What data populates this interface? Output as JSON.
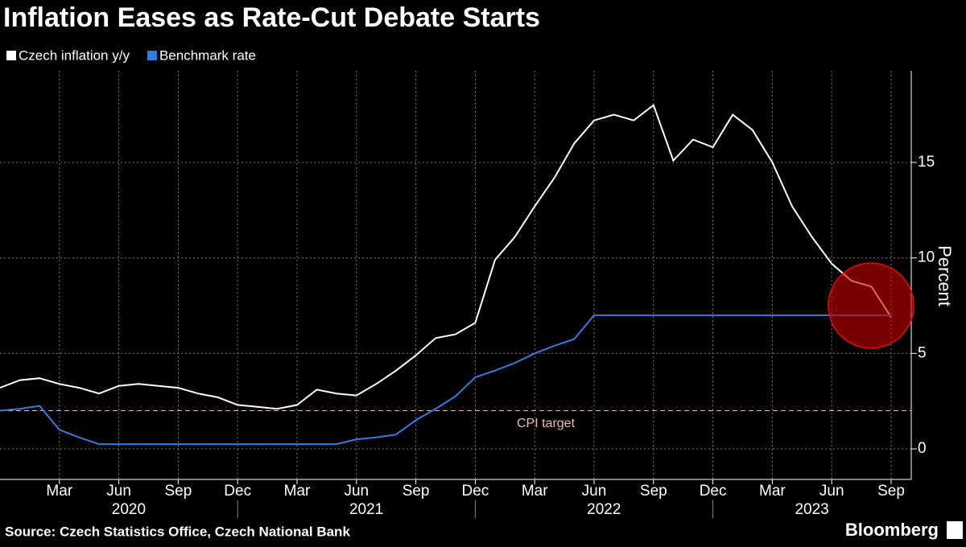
{
  "chart_data": {
    "type": "line",
    "title": "Inflation Eases as Rate-Cut Debate Starts",
    "source": "Source: Czech Statistics Office, Czech National Bank",
    "brand": "Bloomberg",
    "y_label": "Percent",
    "x": [
      "2019-12",
      "2020-01",
      "2020-02",
      "2020-03",
      "2020-04",
      "2020-05",
      "2020-06",
      "2020-07",
      "2020-08",
      "2020-09",
      "2020-10",
      "2020-11",
      "2020-12",
      "2021-01",
      "2021-02",
      "2021-03",
      "2021-04",
      "2021-05",
      "2021-06",
      "2021-07",
      "2021-08",
      "2021-09",
      "2021-10",
      "2021-11",
      "2021-12",
      "2022-01",
      "2022-02",
      "2022-03",
      "2022-04",
      "2022-05",
      "2022-06",
      "2022-07",
      "2022-08",
      "2022-09",
      "2022-10",
      "2022-11",
      "2022-12",
      "2023-01",
      "2023-02",
      "2023-03",
      "2023-04",
      "2023-05",
      "2023-06",
      "2023-07",
      "2023-08",
      "2023-09"
    ],
    "series": [
      {
        "name": "Czech inflation y/y",
        "color": "#ffffff",
        "values": [
          3.2,
          3.6,
          3.7,
          3.4,
          3.2,
          2.9,
          3.3,
          3.4,
          3.3,
          3.2,
          2.9,
          2.7,
          2.3,
          2.2,
          2.1,
          2.3,
          3.1,
          2.9,
          2.8,
          3.4,
          4.1,
          4.9,
          5.8,
          6.0,
          6.6,
          9.9,
          11.1,
          12.7,
          14.2,
          16.0,
          17.2,
          17.5,
          17.2,
          18.0,
          15.1,
          16.2,
          15.8,
          17.5,
          16.7,
          15.0,
          12.7,
          11.1,
          9.7,
          8.8,
          8.5,
          6.9
        ]
      },
      {
        "name": "Benchmark rate",
        "color": "#2f7ee0",
        "values": [
          2.0,
          2.1,
          2.25,
          1.0,
          0.6,
          0.25,
          0.25,
          0.25,
          0.25,
          0.25,
          0.25,
          0.25,
          0.25,
          0.25,
          0.25,
          0.25,
          0.25,
          0.25,
          0.5,
          0.6,
          0.75,
          1.5,
          2.1,
          2.75,
          3.75,
          4.1,
          4.5,
          5.0,
          5.4,
          5.75,
          7.0,
          7.0,
          7.0,
          7.0,
          7.0,
          7.0,
          7.0,
          7.0,
          7.0,
          7.0,
          7.0,
          7.0,
          7.0,
          7.0,
          7.0,
          7.0
        ]
      }
    ],
    "target_line": {
      "value": 2,
      "label": "CPI target",
      "color": "#f4b6b6"
    },
    "xticks": [
      {
        "value": "2020-03",
        "label": "Mar"
      },
      {
        "value": "2020-06",
        "label": "Jun"
      },
      {
        "value": "2020-09",
        "label": "Sep"
      },
      {
        "value": "2020-12",
        "label": "Dec"
      },
      {
        "value": "2021-03",
        "label": "Mar"
      },
      {
        "value": "2021-06",
        "label": "Jun"
      },
      {
        "value": "2021-09",
        "label": "Sep"
      },
      {
        "value": "2021-12",
        "label": "Dec"
      },
      {
        "value": "2022-03",
        "label": "Mar"
      },
      {
        "value": "2022-06",
        "label": "Jun"
      },
      {
        "value": "2022-09",
        "label": "Sep"
      },
      {
        "value": "2022-12",
        "label": "Dec"
      },
      {
        "value": "2023-03",
        "label": "Mar"
      },
      {
        "value": "2023-06",
        "label": "Jun"
      },
      {
        "value": "2023-09",
        "label": "Sep"
      }
    ],
    "years": [
      "2020",
      "2021",
      "2022",
      "2023"
    ],
    "ylim": [
      -1.6,
      19.8
    ],
    "yticks": [
      0,
      5,
      10,
      15
    ],
    "grid": true,
    "legend": "top-left"
  }
}
